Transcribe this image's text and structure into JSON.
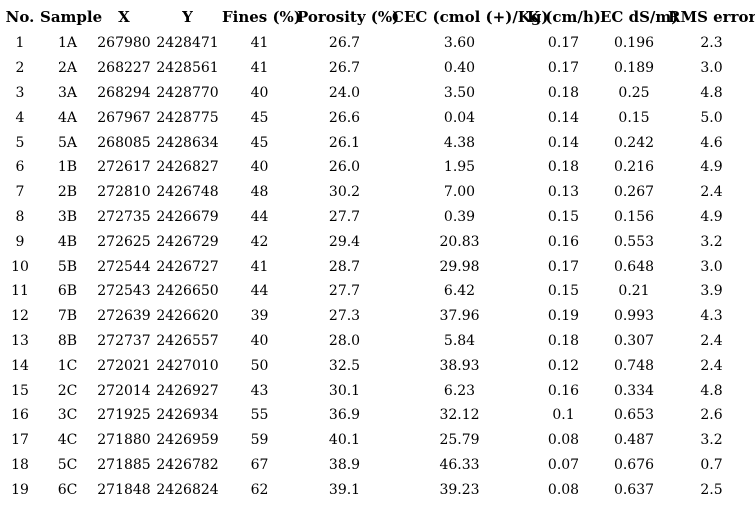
{
  "colors": {
    "background": "#ffffff",
    "text": "#000000"
  },
  "table": {
    "columns": [
      {
        "key": "no",
        "label": "No."
      },
      {
        "key": "sample",
        "label": "Sample"
      },
      {
        "key": "x",
        "label": "X"
      },
      {
        "key": "y",
        "label": "Y"
      },
      {
        "key": "fines",
        "label": "Fines (%)"
      },
      {
        "key": "porosity",
        "label": "Porosity (%)"
      },
      {
        "key": "cec",
        "label": "CEC (cmol (+)/Kg)"
      },
      {
        "key": "k",
        "label": "K (cm/h)"
      },
      {
        "key": "ec",
        "label": "EC dS/m)"
      },
      {
        "key": "rms",
        "label": "RMS error"
      }
    ],
    "rows": [
      [
        "1",
        "1A",
        "267980",
        "2428471",
        "41",
        "26.7",
        "3.60",
        "0.17",
        "0.196",
        "2.3"
      ],
      [
        "2",
        "2A",
        "268227",
        "2428561",
        "41",
        "26.7",
        "0.40",
        "0.17",
        "0.189",
        "3.0"
      ],
      [
        "3",
        "3A",
        "268294",
        "2428770",
        "40",
        "24.0",
        "3.50",
        "0.18",
        "0.25",
        "4.8"
      ],
      [
        "4",
        "4A",
        "267967",
        "2428775",
        "45",
        "26.6",
        "0.04",
        "0.14",
        "0.15",
        "5.0"
      ],
      [
        "5",
        "5A",
        "268085",
        "2428634",
        "45",
        "26.1",
        "4.38",
        "0.14",
        "0.242",
        "4.6"
      ],
      [
        "6",
        "1B",
        "272617",
        "2426827",
        "40",
        "26.0",
        "1.95",
        "0.18",
        "0.216",
        "4.9"
      ],
      [
        "7",
        "2B",
        "272810",
        "2426748",
        "48",
        "30.2",
        "7.00",
        "0.13",
        "0.267",
        "2.4"
      ],
      [
        "8",
        "3B",
        "272735",
        "2426679",
        "44",
        "27.7",
        "0.39",
        "0.15",
        "0.156",
        "4.9"
      ],
      [
        "9",
        "4B",
        "272625",
        "2426729",
        "42",
        "29.4",
        "20.83",
        "0.16",
        "0.553",
        "3.2"
      ],
      [
        "10",
        "5B",
        "272544",
        "2426727",
        "41",
        "28.7",
        "29.98",
        "0.17",
        "0.648",
        "3.0"
      ],
      [
        "11",
        "6B",
        "272543",
        "2426650",
        "44",
        "27.7",
        "6.42",
        "0.15",
        "0.21",
        "3.9"
      ],
      [
        "12",
        "7B",
        "272639",
        "2426620",
        "39",
        "27.3",
        "37.96",
        "0.19",
        "0.993",
        "4.3"
      ],
      [
        "13",
        "8B",
        "272737",
        "2426557",
        "40",
        "28.0",
        "5.84",
        "0.18",
        "0.307",
        "2.4"
      ],
      [
        "14",
        "1C",
        "272021",
        "2427010",
        "50",
        "32.5",
        "38.93",
        "0.12",
        "0.748",
        "2.4"
      ],
      [
        "15",
        "2C",
        "272014",
        "2426927",
        "43",
        "30.1",
        "6.23",
        "0.16",
        "0.334",
        "4.8"
      ],
      [
        "16",
        "3C",
        "271925",
        "2426934",
        "55",
        "36.9",
        "32.12",
        "0.1",
        "0.653",
        "2.6"
      ],
      [
        "17",
        "4C",
        "271880",
        "2426959",
        "59",
        "40.1",
        "25.79",
        "0.08",
        "0.487",
        "3.2"
      ],
      [
        "18",
        "5C",
        "271885",
        "2426782",
        "67",
        "38.9",
        "46.33",
        "0.07",
        "0.676",
        "0.7"
      ],
      [
        "19",
        "6C",
        "271848",
        "2426824",
        "62",
        "39.1",
        "39.23",
        "0.08",
        "0.637",
        "2.5"
      ]
    ]
  }
}
